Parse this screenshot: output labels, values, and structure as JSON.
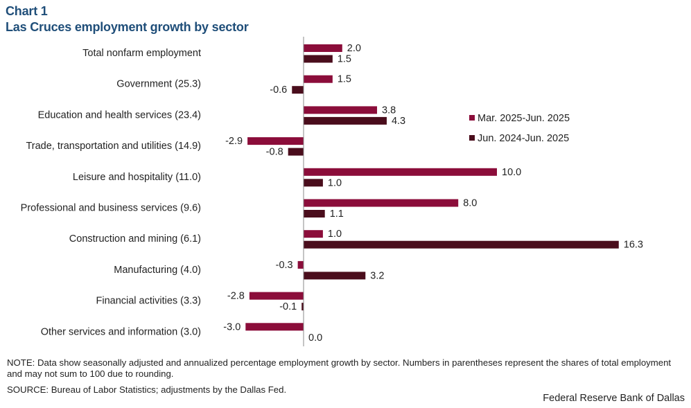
{
  "header": {
    "chart_number": "Chart 1",
    "title": "Las Cruces employment growth by sector"
  },
  "chart_data": {
    "type": "bar",
    "orientation": "horizontal",
    "title": "Las Cruces employment growth by sector",
    "xlabel": "",
    "ylabel": "",
    "categories": [
      "Total nonfarm employment",
      "Government (25.3)",
      "Education and health services (23.4)",
      "Trade, transportation and utilities (14.9)",
      "Leisure and hospitality (11.0)",
      "Professional and business services (9.6)",
      "Construction and mining (6.1)",
      "Manufacturing (4.0)",
      "Financial activities (3.3)",
      "Other services and information (3.0)"
    ],
    "series": [
      {
        "name": "Mar. 2025-Jun. 2025",
        "color": "#8b0d3a",
        "values": [
          2.0,
          1.5,
          3.8,
          -2.9,
          10.0,
          8.0,
          1.0,
          -0.3,
          -2.8,
          -3.0
        ],
        "labels": [
          "2.0",
          "1.5",
          "3.8",
          "-2.9",
          "10.0",
          "8.0",
          "1.0",
          "-0.3",
          "-2.8",
          "-3.0"
        ]
      },
      {
        "name": "Jun. 2024-Jun. 2025",
        "color": "#4a0d1c",
        "values": [
          1.5,
          -0.6,
          4.3,
          -0.8,
          1.0,
          1.1,
          16.3,
          3.2,
          -0.1,
          0.0
        ],
        "labels": [
          "1.5",
          "-0.6",
          "4.3",
          "-0.8",
          "1.0",
          "1.1",
          "16.3",
          "3.2",
          "-0.1",
          "0.0"
        ]
      }
    ],
    "legend_position": "right"
  },
  "footer": {
    "note": "NOTE: Data show seasonally adjusted and annualized percentage employment growth by sector. Numbers in parentheses represent the shares of total employment and may not sum to 100 due to rounding.",
    "source": "SOURCE: Bureau of Labor Statistics; adjustments by the Dallas Fed.",
    "credit": "Federal Reserve Bank of Dallas"
  }
}
